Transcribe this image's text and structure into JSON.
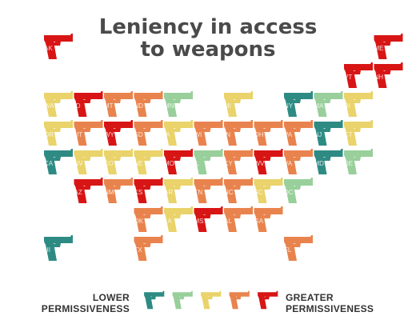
{
  "title_line1": "Leniency in access",
  "title_line2": "to weapons",
  "legend": {
    "low_line1": "LOWER",
    "low_line2": "PERMISSIVENESS",
    "high_line1": "GREATER",
    "high_line2": "PERMISSIVENESS",
    "scale_colors": [
      "#2e8b84",
      "#98cf9a",
      "#e9d36a",
      "#e9834e",
      "#d81515"
    ]
  },
  "chart_data": {
    "type": "table",
    "levels": [
      1,
      2,
      3,
      4,
      5
    ],
    "level_colors": {
      "1": "#2e8b84",
      "2": "#98cf9a",
      "3": "#e9d36a",
      "4": "#e9834e",
      "5": "#d81515"
    },
    "states": [
      {
        "abbr": "AK",
        "level": 5,
        "row": 0,
        "col": 0
      },
      {
        "abbr": "ME",
        "level": 5,
        "row": 0,
        "col": 11
      },
      {
        "abbr": "VT",
        "level": 5,
        "row": 1,
        "col": 10
      },
      {
        "abbr": "NH",
        "level": 5,
        "row": 1,
        "col": 11
      },
      {
        "abbr": "WA",
        "level": 3,
        "row": 2,
        "col": 0
      },
      {
        "abbr": "ID",
        "level": 5,
        "row": 2,
        "col": 1
      },
      {
        "abbr": "MT",
        "level": 4,
        "row": 2,
        "col": 2
      },
      {
        "abbr": "ND",
        "level": 4,
        "row": 2,
        "col": 3
      },
      {
        "abbr": "MN",
        "level": 2,
        "row": 2,
        "col": 4
      },
      {
        "abbr": "MI",
        "level": 3,
        "row": 2,
        "col": 6
      },
      {
        "abbr": "NY",
        "level": 1,
        "row": 2,
        "col": 8
      },
      {
        "abbr": "MA",
        "level": 2,
        "row": 2,
        "col": 9
      },
      {
        "abbr": "RI",
        "level": 3,
        "row": 2,
        "col": 10
      },
      {
        "abbr": "OR",
        "level": 3,
        "row": 3,
        "col": 0
      },
      {
        "abbr": "UT",
        "level": 4,
        "row": 3,
        "col": 1
      },
      {
        "abbr": "WY",
        "level": 5,
        "row": 3,
        "col": 2
      },
      {
        "abbr": "SD",
        "level": 4,
        "row": 3,
        "col": 3
      },
      {
        "abbr": "IA",
        "level": 3,
        "row": 3,
        "col": 4
      },
      {
        "abbr": "WI",
        "level": 4,
        "row": 3,
        "col": 5
      },
      {
        "abbr": "IN",
        "level": 4,
        "row": 3,
        "col": 6
      },
      {
        "abbr": "OH",
        "level": 4,
        "row": 3,
        "col": 7
      },
      {
        "abbr": "PA",
        "level": 4,
        "row": 3,
        "col": 8
      },
      {
        "abbr": "NJ",
        "level": 1,
        "row": 3,
        "col": 9
      },
      {
        "abbr": "CT",
        "level": 3,
        "row": 3,
        "col": 10
      },
      {
        "abbr": "CA",
        "level": 1,
        "row": 4,
        "col": 0
      },
      {
        "abbr": "NV",
        "level": 3,
        "row": 4,
        "col": 1
      },
      {
        "abbr": "CO",
        "level": 3,
        "row": 4,
        "col": 2
      },
      {
        "abbr": "NE",
        "level": 3,
        "row": 4,
        "col": 3
      },
      {
        "abbr": "MO",
        "level": 5,
        "row": 4,
        "col": 4
      },
      {
        "abbr": "IL",
        "level": 2,
        "row": 4,
        "col": 5
      },
      {
        "abbr": "KY",
        "level": 4,
        "row": 4,
        "col": 6
      },
      {
        "abbr": "WV",
        "level": 5,
        "row": 4,
        "col": 7
      },
      {
        "abbr": "VA",
        "level": 4,
        "row": 4,
        "col": 8
      },
      {
        "abbr": "MD",
        "level": 1,
        "row": 4,
        "col": 9
      },
      {
        "abbr": "DE",
        "level": 2,
        "row": 4,
        "col": 10
      },
      {
        "abbr": "AZ",
        "level": 5,
        "row": 5,
        "col": 1
      },
      {
        "abbr": "NM",
        "level": 4,
        "row": 5,
        "col": 2
      },
      {
        "abbr": "KS",
        "level": 5,
        "row": 5,
        "col": 3
      },
      {
        "abbr": "AR",
        "level": 3,
        "row": 5,
        "col": 4
      },
      {
        "abbr": "TN",
        "level": 4,
        "row": 5,
        "col": 5
      },
      {
        "abbr": "NC",
        "level": 4,
        "row": 5,
        "col": 6
      },
      {
        "abbr": "SC",
        "level": 3,
        "row": 5,
        "col": 7
      },
      {
        "abbr": "DC",
        "level": 2,
        "row": 5,
        "col": 8
      },
      {
        "abbr": "OK",
        "level": 4,
        "row": 6,
        "col": 3
      },
      {
        "abbr": "LA",
        "level": 3,
        "row": 6,
        "col": 4
      },
      {
        "abbr": "MS",
        "level": 5,
        "row": 6,
        "col": 5
      },
      {
        "abbr": "AL",
        "level": 4,
        "row": 6,
        "col": 6
      },
      {
        "abbr": "GA",
        "level": 4,
        "row": 6,
        "col": 7
      },
      {
        "abbr": "HI",
        "level": 1,
        "row": 7,
        "col": 0
      },
      {
        "abbr": "TX",
        "level": 4,
        "row": 7,
        "col": 3
      },
      {
        "abbr": "FL",
        "level": 4,
        "row": 7,
        "col": 8
      }
    ]
  }
}
